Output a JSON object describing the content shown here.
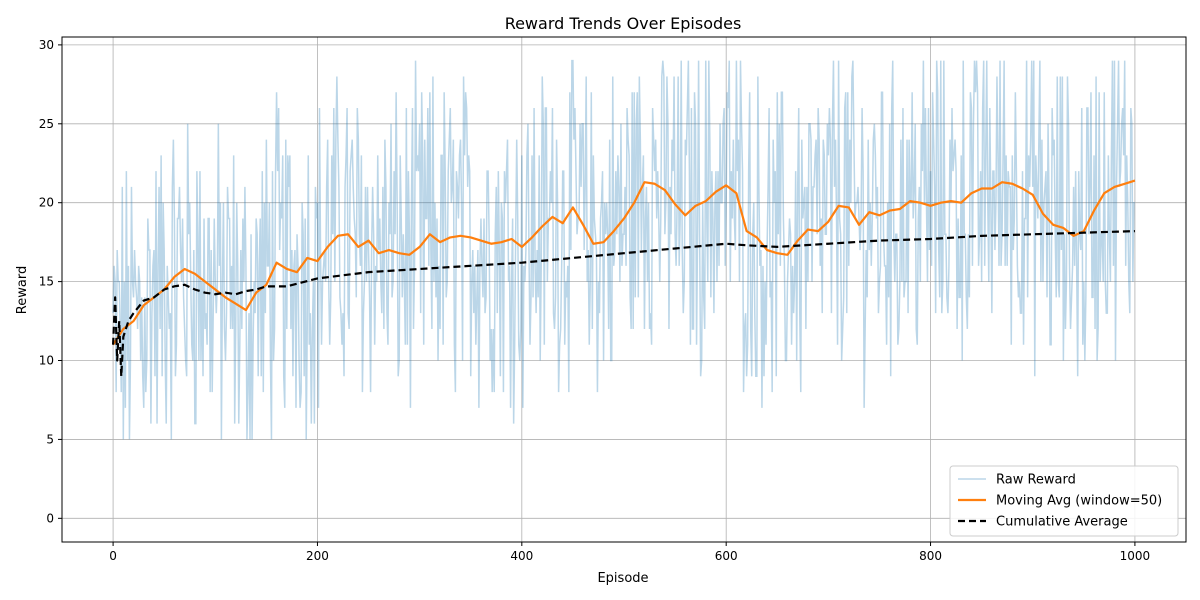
{
  "chart_data": {
    "type": "line",
    "title": "Reward Trends Over Episodes",
    "xlabel": "Episode",
    "ylabel": "Reward",
    "xlim": [
      -50,
      1050
    ],
    "ylim": [
      -1.5,
      30.5
    ],
    "xticks": [
      0,
      200,
      400,
      600,
      800,
      1000
    ],
    "yticks": [
      0,
      5,
      10,
      15,
      20,
      25,
      30
    ],
    "grid": true,
    "legend_position": "bottom-right",
    "raw_reward_description": "noisy per-episode reward in range 0 to 29",
    "series": [
      {
        "name": "Raw Reward",
        "color": "#1f77b4",
        "opacity": 0.3,
        "style": "solid",
        "x_range": [
          0,
          1000
        ],
        "value_range": [
          0,
          29
        ]
      },
      {
        "name": "Moving Avg (window=50)",
        "color": "#ff7f0e",
        "style": "solid",
        "x": [
          0,
          10,
          20,
          30,
          40,
          50,
          60,
          70,
          80,
          90,
          100,
          110,
          120,
          130,
          140,
          150,
          160,
          170,
          180,
          190,
          200,
          210,
          220,
          230,
          240,
          250,
          260,
          270,
          280,
          290,
          300,
          310,
          320,
          330,
          340,
          350,
          360,
          370,
          380,
          390,
          400,
          410,
          420,
          430,
          440,
          450,
          460,
          470,
          480,
          490,
          500,
          510,
          520,
          530,
          540,
          550,
          560,
          570,
          580,
          590,
          600,
          610,
          620,
          630,
          640,
          650,
          660,
          670,
          680,
          690,
          700,
          710,
          720,
          730,
          740,
          750,
          760,
          770,
          780,
          790,
          800,
          810,
          820,
          830,
          840,
          850,
          860,
          870,
          880,
          890,
          900,
          910,
          920,
          930,
          940,
          950,
          960,
          970,
          980,
          990,
          1000
        ],
        "y": [
          11.0,
          12.0,
          12.5,
          13.5,
          14.0,
          14.5,
          15.3,
          15.8,
          15.5,
          15.0,
          14.5,
          14.0,
          13.6,
          13.2,
          14.3,
          14.8,
          16.2,
          15.8,
          15.6,
          16.5,
          16.3,
          17.2,
          17.9,
          18.0,
          17.2,
          17.6,
          16.8,
          17.0,
          16.8,
          16.7,
          17.2,
          18.0,
          17.5,
          17.8,
          17.9,
          17.8,
          17.6,
          17.4,
          17.5,
          17.7,
          17.2,
          17.8,
          18.5,
          19.1,
          18.7,
          19.7,
          18.6,
          17.4,
          17.5,
          18.2,
          19.0,
          20.0,
          21.3,
          21.2,
          20.8,
          19.9,
          19.2,
          19.8,
          20.1,
          20.7,
          21.1,
          20.6,
          18.2,
          17.8,
          17.0,
          16.8,
          16.7,
          17.6,
          18.3,
          18.2,
          18.8,
          19.8,
          19.7,
          18.6,
          19.4,
          19.2,
          19.5,
          19.6,
          20.1,
          20.0,
          19.8,
          20.0,
          20.1,
          20.0,
          20.6,
          20.9,
          20.9,
          21.3,
          21.2,
          20.9,
          20.5,
          19.3,
          18.6,
          18.4,
          17.9,
          18.2,
          19.5,
          20.6,
          21.0,
          21.2,
          21.4
        ]
      },
      {
        "name": "Cumulative Average",
        "color": "#000000",
        "style": "dashed",
        "x": [
          0,
          2,
          4,
          6,
          8,
          10,
          15,
          20,
          30,
          40,
          50,
          60,
          70,
          80,
          90,
          100,
          110,
          120,
          130,
          140,
          150,
          170,
          200,
          250,
          300,
          350,
          400,
          450,
          500,
          550,
          600,
          620,
          650,
          700,
          750,
          800,
          850,
          900,
          950,
          1000
        ],
        "y": [
          11.0,
          14.0,
          10.0,
          12.5,
          9.0,
          11.5,
          12.5,
          13.0,
          13.8,
          14.0,
          14.5,
          14.7,
          14.8,
          14.5,
          14.3,
          14.2,
          14.3,
          14.2,
          14.4,
          14.5,
          14.7,
          14.7,
          15.2,
          15.6,
          15.8,
          16.0,
          16.2,
          16.5,
          16.8,
          17.1,
          17.4,
          17.3,
          17.2,
          17.4,
          17.6,
          17.7,
          17.9,
          18.0,
          18.1,
          18.2
        ]
      }
    ]
  }
}
